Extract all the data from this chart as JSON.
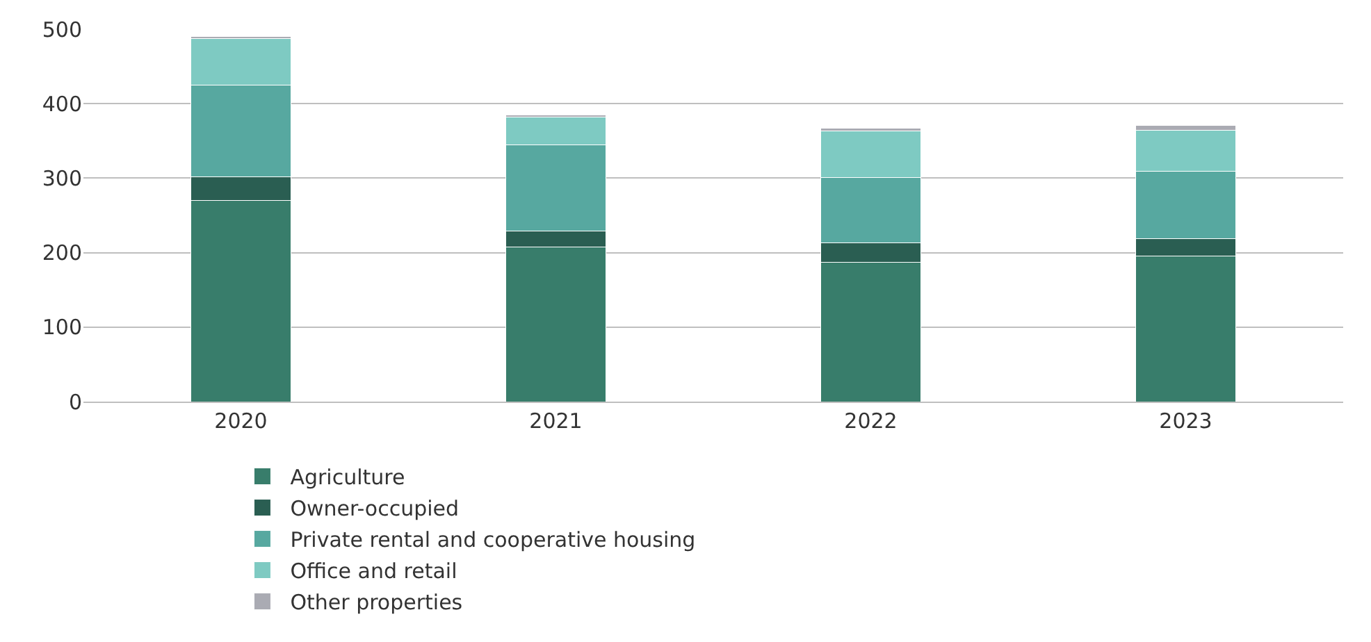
{
  "chart_data": {
    "type": "bar",
    "stacked": true,
    "categories": [
      "2020",
      "2021",
      "2022",
      "2023"
    ],
    "series": [
      {
        "name": "Agriculture",
        "color": "#387d6b",
        "values": [
          270,
          208,
          187,
          195
        ]
      },
      {
        "name": "Owner-occupied",
        "color": "#2a5e52",
        "values": [
          32,
          21,
          26,
          24
        ]
      },
      {
        "name": "Private rental and cooperative housing",
        "color": "#57a8a0",
        "values": [
          123,
          116,
          88,
          90
        ]
      },
      {
        "name": "Office and retail",
        "color": "#7ecac2",
        "values": [
          62,
          37,
          62,
          55
        ]
      },
      {
        "name": "Other properties",
        "color": "#aaabb3",
        "values": [
          3,
          3,
          4,
          7
        ]
      }
    ],
    "ylim": [
      0,
      500
    ],
    "yticks": [
      0,
      100,
      200,
      300,
      400,
      500
    ],
    "grid": "y",
    "legend": "bottom"
  }
}
